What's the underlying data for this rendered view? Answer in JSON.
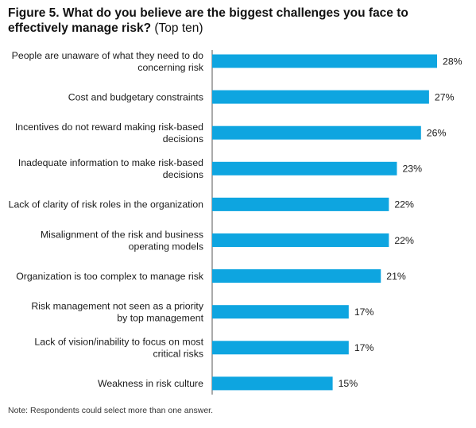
{
  "figure": {
    "title_bold": "Figure 5. What do you believe are the biggest challenges you face to effectively manage risk?",
    "title_suffix": "(Top ten)",
    "note": "Note: Respondents could select more than one answer."
  },
  "colors": {
    "bar": "#0ea5e0",
    "text": "#1a1a1a",
    "axis": "#555555"
  },
  "chart_data": {
    "type": "bar",
    "orientation": "horizontal",
    "categories": [
      [
        "People are unaware of what they need to do",
        "concerning risk"
      ],
      [
        "Cost and budgetary constraints"
      ],
      [
        "Incentives do not reward making risk-based",
        "decisions"
      ],
      [
        "Inadequate information to make risk-based",
        "decisions"
      ],
      [
        "Lack of clarity of risk roles in the organization"
      ],
      [
        "Misalignment of the risk and business",
        "operating models"
      ],
      [
        "Organization is too complex to manage risk"
      ],
      [
        "Risk management not seen as a priority",
        "by top management"
      ],
      [
        "Lack of vision/inability to focus on most",
        "critical risks"
      ],
      [
        "Weakness in risk culture"
      ]
    ],
    "values": [
      28,
      27,
      26,
      23,
      22,
      22,
      21,
      17,
      17,
      15
    ],
    "value_labels": [
      "28%",
      "27%",
      "26%",
      "23%",
      "22%",
      "22%",
      "21%",
      "17%",
      "17%",
      "15%"
    ],
    "unit": "%",
    "xlim": [
      0,
      28
    ],
    "grid": false,
    "legend": "none"
  }
}
